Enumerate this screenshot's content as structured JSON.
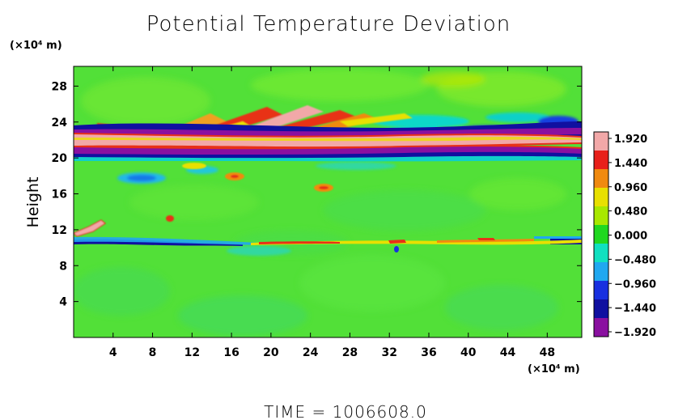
{
  "chart_data": {
    "type": "heatmap",
    "title": "Potential Temperature Deviation",
    "ylabel": "Height",
    "y_unit": "(×10⁴ m)",
    "x_unit": "(×10⁴ m)",
    "x_ticks": [
      "4",
      "8",
      "12",
      "16",
      "20",
      "24",
      "28",
      "32",
      "36",
      "40",
      "44",
      "48"
    ],
    "x_tick_values": [
      4,
      8,
      12,
      16,
      20,
      24,
      28,
      32,
      36,
      40,
      44,
      48
    ],
    "y_ticks": [
      "4",
      "8",
      "12",
      "16",
      "20",
      "24",
      "28"
    ],
    "y_tick_values": [
      4,
      8,
      12,
      16,
      20,
      24,
      28
    ],
    "xlim": [
      0,
      51.5
    ],
    "ylim": [
      0,
      30.2
    ],
    "colorbar": {
      "labels": [
        "1.920",
        "1.440",
        "0.960",
        "0.480",
        "0.000",
        "−0.480",
        "−0.960",
        "−1.440",
        "−1.920"
      ],
      "values": [
        1.92,
        1.44,
        0.96,
        0.48,
        0.0,
        -0.48,
        -0.96,
        -1.44,
        -1.92
      ],
      "colors": [
        "#f2a8a8",
        "#e8201a",
        "#f08a10",
        "#e8e000",
        "#a8e800",
        "#20d820",
        "#10e0c0",
        "#20a8f0",
        "#1830e0",
        "#1010a0",
        "#8a10a0"
      ]
    },
    "features": [
      {
        "name": "band",
        "x": [
          0,
          51.5
        ],
        "y": [
          20,
          22.5
        ],
        "value": 1.92
      },
      {
        "name": "band",
        "x": [
          0,
          51.5
        ],
        "y": [
          20,
          21
        ],
        "value": -1.92
      },
      {
        "name": "layer",
        "x": [
          0,
          51.5
        ],
        "y": [
          10.2,
          10.6
        ],
        "value": -1.2
      },
      {
        "name": "layer",
        "x": [
          18,
          51.5
        ],
        "y": [
          10.6,
          11
        ],
        "value": 1.2
      }
    ]
  },
  "footer": {
    "time": "TIME  =  1006608.0"
  }
}
